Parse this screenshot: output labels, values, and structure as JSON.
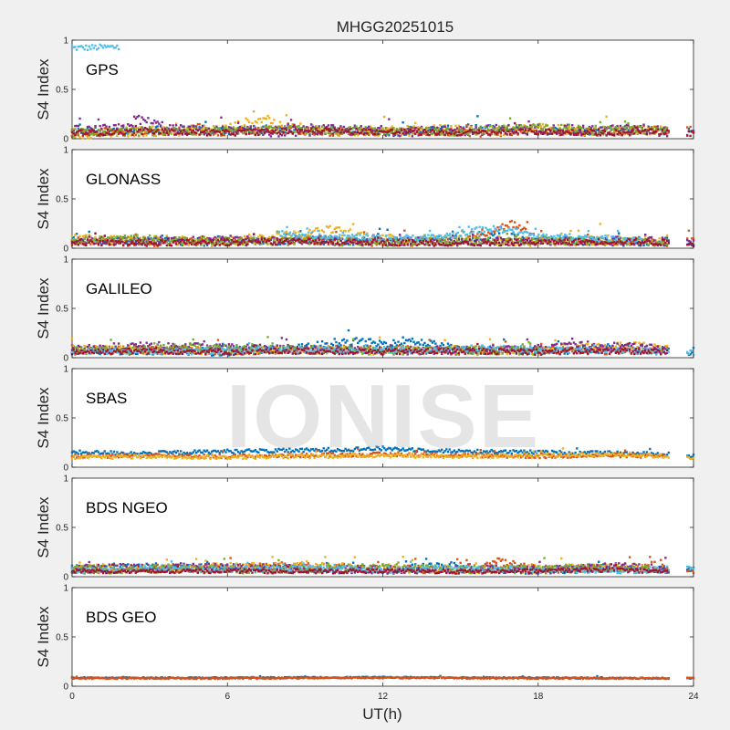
{
  "figure": {
    "title": "MHGG20251015",
    "watermark": "IONISE",
    "xlabel": "UT(h)",
    "ylabel": "S4 Index",
    "xlim": [
      0,
      24
    ],
    "xticks": [
      "0",
      "6",
      "12",
      "18",
      "24"
    ],
    "ylim": [
      0,
      1
    ],
    "yticks": [
      "0",
      "0.5",
      "1"
    ],
    "palette": [
      "#0072bd",
      "#d95319",
      "#edb120",
      "#7e2f8e",
      "#77ac30",
      "#4dbeee",
      "#a2142f"
    ]
  },
  "chart_data": [
    {
      "type": "scatter",
      "panel": "GPS",
      "system_label": "GPS",
      "xlabel": "UT(h)",
      "ylabel": "S4 Index",
      "xlim": [
        0,
        24
      ],
      "ylim": [
        0,
        1
      ],
      "series": [
        {
          "name": "sat-cyan-early",
          "color": "#4dbeee",
          "x": [
            0.0,
            1.8
          ],
          "y": [
            0.92,
            0.93
          ],
          "noise": 0.03
        },
        {
          "name": "sat-blue",
          "color": "#0072bd",
          "x": [
            0,
            2,
            4,
            6,
            8,
            10,
            12,
            14,
            16,
            18,
            20,
            22,
            23,
            24
          ],
          "y": [
            0.07,
            0.08,
            0.09,
            0.08,
            0.1,
            0.08,
            0.07,
            0.09,
            0.1,
            0.08,
            0.08,
            0.09,
            0.08,
            0.06
          ],
          "noise": 0.04
        },
        {
          "name": "sat-orange",
          "color": "#d95319",
          "x": [
            0,
            2,
            4,
            6,
            8,
            10,
            12,
            14,
            16,
            18,
            20,
            22,
            23,
            24
          ],
          "y": [
            0.06,
            0.07,
            0.08,
            0.07,
            0.09,
            0.07,
            0.08,
            0.07,
            0.06,
            0.08,
            0.07,
            0.09,
            0.08,
            0.1
          ],
          "noise": 0.04
        },
        {
          "name": "sat-yellow",
          "color": "#edb120",
          "x": [
            0,
            2,
            4,
            6,
            7.5,
            8,
            10,
            12,
            14,
            16,
            18,
            20,
            22,
            23
          ],
          "y": [
            0.05,
            0.07,
            0.08,
            0.1,
            0.22,
            0.12,
            0.08,
            0.07,
            0.09,
            0.08,
            0.1,
            0.08,
            0.09,
            0.08
          ],
          "noise": 0.05
        },
        {
          "name": "sat-purple",
          "color": "#7e2f8e",
          "x": [
            0,
            2,
            2.5,
            4,
            6,
            8,
            10,
            12,
            14,
            16,
            18,
            20,
            22,
            23
          ],
          "y": [
            0.08,
            0.1,
            0.2,
            0.09,
            0.08,
            0.07,
            0.09,
            0.08,
            0.07,
            0.09,
            0.1,
            0.08,
            0.1,
            0.07
          ],
          "noise": 0.05
        },
        {
          "name": "sat-green",
          "color": "#77ac30",
          "x": [
            0,
            3,
            6,
            9,
            12,
            15,
            18,
            21,
            23
          ],
          "y": [
            0.06,
            0.07,
            0.08,
            0.09,
            0.08,
            0.07,
            0.12,
            0.08,
            0.09
          ],
          "noise": 0.04
        },
        {
          "name": "sat-dark-red",
          "color": "#a2142f",
          "x": [
            0,
            3,
            6,
            9,
            12,
            15,
            18,
            21,
            23,
            24
          ],
          "y": [
            0.06,
            0.07,
            0.06,
            0.08,
            0.07,
            0.06,
            0.07,
            0.06,
            0.07,
            0.05
          ],
          "noise": 0.03
        }
      ]
    },
    {
      "type": "scatter",
      "panel": "GLONASS",
      "system_label": "GLONASS",
      "xlabel": "UT(h)",
      "ylabel": "S4 Index",
      "xlim": [
        0,
        24
      ],
      "ylim": [
        0,
        1
      ],
      "series": [
        {
          "name": "sat-blue",
          "color": "#0072bd",
          "x": [
            0,
            3,
            6,
            9,
            12,
            15,
            16.5,
            18,
            21,
            24
          ],
          "y": [
            0.08,
            0.07,
            0.06,
            0.08,
            0.07,
            0.09,
            0.12,
            0.08,
            0.06,
            0.07
          ],
          "noise": 0.04
        },
        {
          "name": "sat-orange",
          "color": "#d95319",
          "x": [
            0,
            3,
            6,
            9,
            12,
            15,
            17,
            18,
            21,
            23,
            24
          ],
          "y": [
            0.07,
            0.06,
            0.07,
            0.08,
            0.06,
            0.07,
            0.25,
            0.08,
            0.07,
            0.06,
            0.08
          ],
          "noise": 0.04
        },
        {
          "name": "sat-yellow",
          "color": "#edb120",
          "x": [
            0,
            3,
            6,
            9,
            10,
            12,
            15,
            18,
            21,
            23
          ],
          "y": [
            0.09,
            0.08,
            0.07,
            0.14,
            0.18,
            0.09,
            0.08,
            0.07,
            0.08,
            0.07
          ],
          "noise": 0.05
        },
        {
          "name": "sat-purple",
          "color": "#7e2f8e",
          "x": [
            0,
            3,
            6,
            9,
            12,
            15,
            18,
            21,
            24
          ],
          "y": [
            0.08,
            0.07,
            0.09,
            0.08,
            0.07,
            0.06,
            0.07,
            0.08,
            0.06
          ],
          "noise": 0.04
        },
        {
          "name": "sat-green",
          "color": "#77ac30",
          "x": [
            0,
            2,
            4,
            6,
            9,
            12,
            15,
            18,
            21,
            23
          ],
          "y": [
            0.09,
            0.1,
            0.08,
            0.07,
            0.07,
            0.06,
            0.07,
            0.08,
            0.07,
            0.06
          ],
          "noise": 0.04
        },
        {
          "name": "sat-cyan",
          "color": "#4dbeee",
          "x": [
            8,
            10,
            12,
            14,
            15,
            16,
            17,
            18,
            20,
            22
          ],
          "y": [
            0.15,
            0.12,
            0.1,
            0.11,
            0.15,
            0.2,
            0.18,
            0.12,
            0.1,
            0.09
          ],
          "noise": 0.03
        },
        {
          "name": "sat-dark-red",
          "color": "#a2142f",
          "x": [
            0,
            3,
            6,
            9,
            12,
            15,
            18,
            21,
            24
          ],
          "y": [
            0.06,
            0.05,
            0.06,
            0.07,
            0.06,
            0.05,
            0.06,
            0.07,
            0.05
          ],
          "noise": 0.03
        }
      ]
    },
    {
      "type": "scatter",
      "panel": "GALILEO",
      "system_label": "GALILEO",
      "xlabel": "UT(h)",
      "ylabel": "S4 Index",
      "xlim": [
        0,
        24
      ],
      "ylim": [
        0,
        1
      ],
      "series": [
        {
          "name": "sat-blue",
          "color": "#0072bd",
          "x": [
            0,
            3,
            6,
            9,
            10.5,
            12,
            13,
            15,
            18,
            21,
            24
          ],
          "y": [
            0.08,
            0.07,
            0.06,
            0.1,
            0.17,
            0.14,
            0.18,
            0.08,
            0.07,
            0.09,
            0.06
          ],
          "noise": 0.04
        },
        {
          "name": "sat-orange",
          "color": "#d95319",
          "x": [
            0,
            3,
            6,
            9,
            12,
            15,
            18,
            21,
            23
          ],
          "y": [
            0.07,
            0.08,
            0.07,
            0.08,
            0.09,
            0.07,
            0.08,
            0.07,
            0.09
          ],
          "noise": 0.04
        },
        {
          "name": "sat-yellow",
          "color": "#edb120",
          "x": [
            0,
            3,
            6,
            9,
            12,
            15,
            18,
            20,
            22,
            23
          ],
          "y": [
            0.09,
            0.08,
            0.07,
            0.08,
            0.07,
            0.08,
            0.07,
            0.1,
            0.12,
            0.08
          ],
          "noise": 0.04
        },
        {
          "name": "sat-purple",
          "color": "#7e2f8e",
          "x": [
            0,
            3,
            6,
            9,
            12,
            15,
            18,
            20,
            22,
            23
          ],
          "y": [
            0.08,
            0.12,
            0.1,
            0.08,
            0.07,
            0.08,
            0.09,
            0.13,
            0.1,
            0.08
          ],
          "noise": 0.04
        },
        {
          "name": "sat-green",
          "color": "#77ac30",
          "x": [
            0,
            2,
            4,
            6,
            9,
            12,
            15,
            18
          ],
          "y": [
            0.07,
            0.08,
            0.1,
            0.09,
            0.08,
            0.07,
            0.08,
            0.07
          ],
          "noise": 0.04
        },
        {
          "name": "sat-cyan",
          "color": "#4dbeee",
          "x": [
            0,
            3,
            6,
            9,
            12,
            15,
            16.5,
            18,
            21,
            24
          ],
          "y": [
            0.07,
            0.06,
            0.07,
            0.08,
            0.07,
            0.08,
            0.1,
            0.08,
            0.07,
            0.06
          ],
          "noise": 0.03
        },
        {
          "name": "sat-dark-red",
          "color": "#a2142f",
          "x": [
            0,
            3,
            6,
            9,
            12,
            15,
            18,
            21,
            23
          ],
          "y": [
            0.06,
            0.07,
            0.06,
            0.07,
            0.06,
            0.07,
            0.06,
            0.07,
            0.06
          ],
          "noise": 0.03
        }
      ]
    },
    {
      "type": "scatter",
      "panel": "SBAS",
      "system_label": "SBAS",
      "xlabel": "UT(h)",
      "ylabel": "S4 Index",
      "xlim": [
        0,
        24
      ],
      "ylim": [
        0,
        1
      ],
      "series": [
        {
          "name": "sat-blue",
          "color": "#0072bd",
          "x": [
            0,
            3,
            6,
            9,
            12,
            15,
            18,
            21,
            23,
            24
          ],
          "y": [
            0.15,
            0.14,
            0.16,
            0.17,
            0.19,
            0.16,
            0.15,
            0.14,
            0.13,
            0.12
          ],
          "noise": 0.02
        },
        {
          "name": "sat-orange",
          "color": "#d95319",
          "x": [
            0,
            3,
            6,
            9,
            12,
            15,
            18,
            21,
            23
          ],
          "y": [
            0.11,
            0.12,
            0.11,
            0.12,
            0.13,
            0.12,
            0.11,
            0.12,
            0.11
          ],
          "noise": 0.02
        },
        {
          "name": "sat-yellow",
          "color": "#edb120",
          "x": [
            0,
            3,
            6,
            9,
            12,
            15,
            18,
            21,
            23,
            24
          ],
          "y": [
            0.1,
            0.11,
            0.1,
            0.11,
            0.12,
            0.11,
            0.12,
            0.13,
            0.11,
            0.1
          ],
          "noise": 0.02
        }
      ]
    },
    {
      "type": "scatter",
      "panel": "BDS NGEO",
      "system_label": "BDS NGEO",
      "xlabel": "UT(h)",
      "ylabel": "S4 Index",
      "xlim": [
        0,
        24
      ],
      "ylim": [
        0,
        1
      ],
      "series": [
        {
          "name": "sat-blue",
          "color": "#0072bd",
          "x": [
            0,
            3,
            6,
            9,
            12,
            14.5,
            15,
            18,
            21,
            24
          ],
          "y": [
            0.08,
            0.1,
            0.09,
            0.08,
            0.07,
            0.12,
            0.08,
            0.07,
            0.09,
            0.07
          ],
          "noise": 0.04
        },
        {
          "name": "sat-orange",
          "color": "#d95319",
          "x": [
            0,
            3,
            6,
            9,
            12,
            15,
            16.5,
            18,
            21,
            22,
            24
          ],
          "y": [
            0.07,
            0.08,
            0.09,
            0.1,
            0.08,
            0.07,
            0.15,
            0.07,
            0.09,
            0.12,
            0.08
          ],
          "noise": 0.04
        },
        {
          "name": "sat-yellow",
          "color": "#edb120",
          "x": [
            0,
            3,
            6,
            9,
            12,
            15,
            18,
            21,
            23
          ],
          "y": [
            0.09,
            0.08,
            0.1,
            0.11,
            0.08,
            0.07,
            0.08,
            0.09,
            0.07
          ],
          "noise": 0.04
        },
        {
          "name": "sat-purple",
          "color": "#7e2f8e",
          "x": [
            0,
            3,
            6,
            9,
            12,
            15,
            18,
            21,
            23
          ],
          "y": [
            0.08,
            0.1,
            0.09,
            0.08,
            0.07,
            0.08,
            0.07,
            0.1,
            0.08
          ],
          "noise": 0.04
        },
        {
          "name": "sat-green",
          "color": "#77ac30",
          "x": [
            0,
            3,
            6,
            9,
            12,
            15,
            18,
            21,
            22.5
          ],
          "y": [
            0.07,
            0.08,
            0.07,
            0.08,
            0.09,
            0.07,
            0.08,
            0.09,
            0.08
          ],
          "noise": 0.04
        },
        {
          "name": "sat-cyan",
          "color": "#4dbeee",
          "x": [
            0,
            3,
            6,
            9,
            12,
            15,
            18,
            21,
            24
          ],
          "y": [
            0.06,
            0.08,
            0.07,
            0.09,
            0.07,
            0.08,
            0.07,
            0.06,
            0.08
          ],
          "noise": 0.03
        },
        {
          "name": "sat-dark-red",
          "color": "#a2142f",
          "x": [
            0,
            3,
            6,
            9,
            12,
            15,
            18,
            21,
            23
          ],
          "y": [
            0.06,
            0.05,
            0.06,
            0.05,
            0.06,
            0.05,
            0.06,
            0.07,
            0.05
          ],
          "noise": 0.02
        }
      ]
    },
    {
      "type": "scatter",
      "panel": "BDS GEO",
      "system_label": "BDS GEO",
      "xlabel": "UT(h)",
      "ylabel": "S4 Index",
      "xlim": [
        0,
        24
      ],
      "ylim": [
        0,
        1
      ],
      "series": [
        {
          "name": "sat-blue",
          "color": "#0072bd",
          "x": [
            0,
            6,
            12,
            18,
            23,
            24
          ],
          "y": [
            0.085,
            0.085,
            0.09,
            0.085,
            0.08,
            0.08
          ],
          "noise": 0.006
        },
        {
          "name": "sat-orange",
          "color": "#d95319",
          "x": [
            0,
            6,
            12,
            18,
            23,
            24
          ],
          "y": [
            0.08,
            0.08,
            0.085,
            0.08,
            0.08,
            0.08
          ],
          "noise": 0.006
        }
      ]
    }
  ]
}
